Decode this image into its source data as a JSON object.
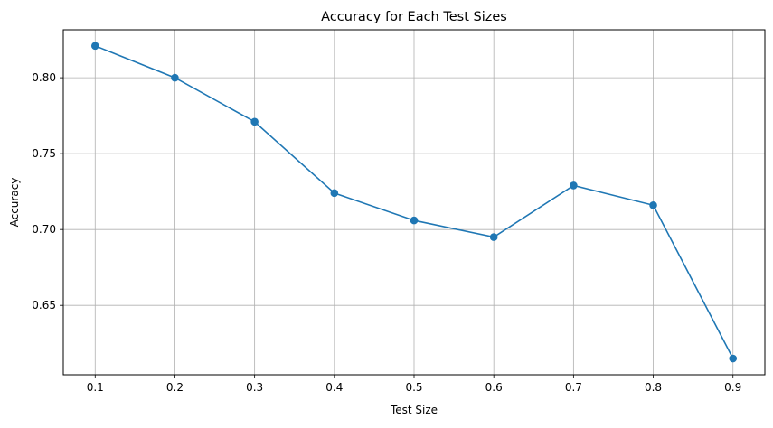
{
  "chart_data": {
    "type": "line",
    "title": "Accuracy for Each Test Sizes",
    "xlabel": "Test Size",
    "ylabel": "Accuracy",
    "x": [
      0.1,
      0.2,
      0.3,
      0.4,
      0.5,
      0.6,
      0.7,
      0.8,
      0.9
    ],
    "series": [
      {
        "values": [
          0.821,
          0.8,
          0.771,
          0.724,
          0.706,
          0.695,
          0.729,
          0.716,
          0.615
        ]
      }
    ],
    "x_ticks": [
      "0.1",
      "0.2",
      "0.3",
      "0.4",
      "0.5",
      "0.6",
      "0.7",
      "0.8",
      "0.9"
    ],
    "y_ticks": [
      "0.65",
      "0.70",
      "0.75",
      "0.80"
    ],
    "xlim": [
      0.06,
      0.94
    ],
    "ylim": [
      0.6043,
      0.8316
    ],
    "grid": true,
    "marker": "circle",
    "colors": {
      "line": "#1f77b4",
      "grid": "#b0b0b0",
      "axes": "#000000"
    }
  }
}
